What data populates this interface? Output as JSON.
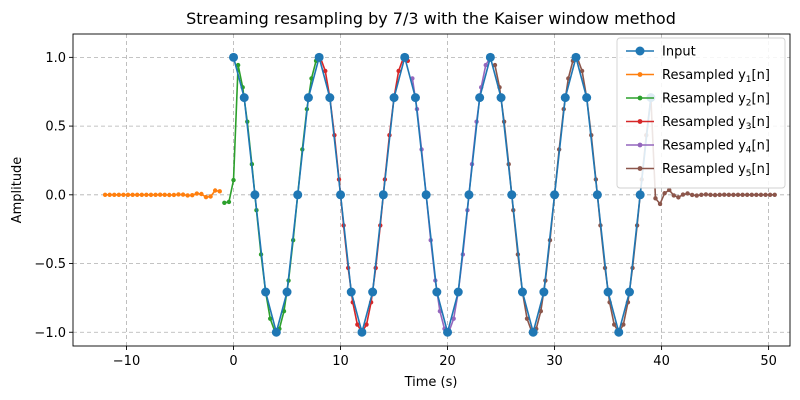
{
  "chart_data": {
    "type": "line",
    "title": "Streaming resampling by 7/3 with the Kaiser window method",
    "xlabel": "Time (s)",
    "ylabel": "Amplitude",
    "xlim": [
      -15,
      52
    ],
    "ylim": [
      -1.1,
      1.17
    ],
    "xticks": [
      -10,
      0,
      10,
      20,
      30,
      40,
      50
    ],
    "xtick_labels": [
      "−10",
      "0",
      "10",
      "20",
      "30",
      "40",
      "50"
    ],
    "yticks": [
      -1.0,
      -0.5,
      0.0,
      0.5,
      1.0
    ],
    "ytick_labels": [
      "−1.0",
      "−0.5",
      "0.0",
      "0.5",
      "1.0"
    ],
    "grid": true,
    "legend_position": "top-right",
    "input": {
      "name": "Input",
      "color": "#1f77b4",
      "t_start": 0,
      "t_end": 39,
      "t_step": 1,
      "period": 8
    },
    "resampled": {
      "step": 0.42857,
      "period": 8,
      "start": -12,
      "end": 50.6,
      "signal_start": 0,
      "signal_end": 39
    },
    "series": [
      {
        "name": "Resampled y₁[n]",
        "base": "Resampled y",
        "sub": "1",
        "color": "#ff7f0e",
        "t_from": -12,
        "t_to": -1.2
      },
      {
        "name": "Resampled y₂[n]",
        "base": "Resampled y",
        "sub": "2",
        "color": "#2ca02c",
        "t_from": -1.2,
        "t_to": 8
      },
      {
        "name": "Resampled y₃[n]",
        "base": "Resampled y",
        "sub": "3",
        "color": "#d62728",
        "t_from": 8,
        "t_to": 16.3
      },
      {
        "name": "Resampled y₄[n]",
        "base": "Resampled y",
        "sub": "4",
        "color": "#9467bd",
        "t_from": 16.3,
        "t_to": 24.3
      },
      {
        "name": "Resampled y₅[n]",
        "base": "Resampled y",
        "sub": "5",
        "color": "#8c564b",
        "t_from": 24.3,
        "t_to": 51
      }
    ]
  }
}
